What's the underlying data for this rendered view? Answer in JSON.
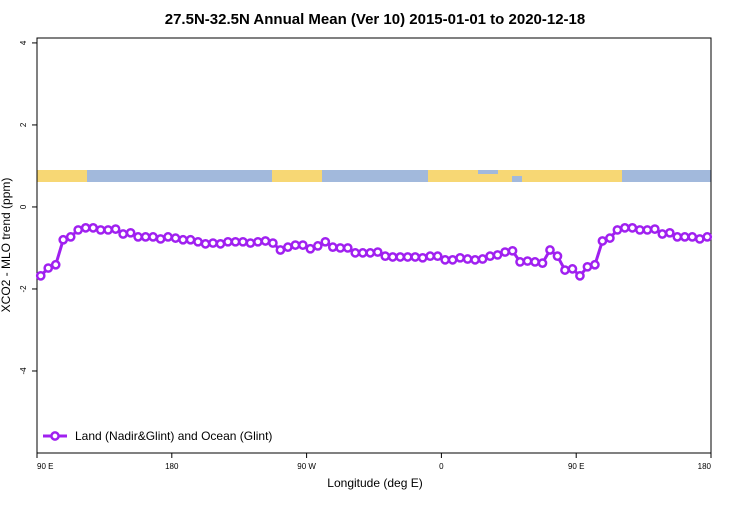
{
  "chart_data": {
    "type": "line",
    "title": "27.5N-32.5N Annual Mean (Ver 10)   2015-01-01 to 2020-12-18",
    "xlabel": "Longitude (deg E)",
    "ylabel": "XCO2 - MLO trend (ppm)",
    "xlim": [
      90,
      540
    ],
    "ylim": [
      -6,
      4.12
    ],
    "xticks": [
      {
        "value": 90,
        "label": "90 E"
      },
      180,
      {
        "value": 270,
        "label": "90 W"
      },
      {
        "value": 360,
        "label": "0"
      },
      {
        "value": 450,
        "label": "90 E"
      },
      {
        "value": 540,
        "label": "180"
      }
    ],
    "yticks": [
      4,
      2,
      0,
      -2,
      -4
    ],
    "legend": "bottom-left",
    "x": [
      92.5,
      97.5,
      102.5,
      107.5,
      112.5,
      117.5,
      122.5,
      127.5,
      132.5,
      137.5,
      142.5,
      147.5,
      152.5,
      157.5,
      162.5,
      167.5,
      172.5,
      177.5,
      182.5,
      187.5,
      192.5,
      197.5,
      202.5,
      207.5,
      212.5,
      217.5,
      222.5,
      227.5,
      232.5,
      237.5,
      242.5,
      247.5,
      252.5,
      257.5,
      262.5,
      267.5,
      272.5,
      277.5,
      282.5,
      287.5,
      292.5,
      297.5,
      302.5,
      307.5,
      312.5,
      317.5,
      322.5,
      327.5,
      332.5,
      337.5,
      342.5,
      347.5,
      352.5,
      357.5,
      362.5,
      367.5,
      372.5,
      377.5,
      382.5,
      387.5,
      392.5,
      397.5,
      402.5,
      407.5,
      412.5,
      417.5,
      422.5,
      427.5,
      432.5,
      437.5,
      442.5,
      447.5,
      452.5,
      457.5,
      462.5,
      467.5,
      472.5,
      477.5,
      482.5,
      487.5,
      492.5,
      497.5,
      502.5,
      507.5,
      512.5,
      517.5,
      522.5,
      527.5,
      532.5,
      537.5
    ],
    "series": [
      {
        "name": "Land (Nadir&Glint) and Ocean (Glint)",
        "color": "#a020f0",
        "values": [
          -1.68,
          -1.49,
          -1.41,
          -0.8,
          -0.73,
          -0.56,
          -0.51,
          -0.51,
          -0.56,
          -0.56,
          -0.54,
          -0.66,
          -0.63,
          -0.73,
          -0.73,
          -0.73,
          -0.78,
          -0.73,
          -0.76,
          -0.8,
          -0.8,
          -0.85,
          -0.9,
          -0.88,
          -0.9,
          -0.85,
          -0.85,
          -0.85,
          -0.88,
          -0.85,
          -0.83,
          -0.88,
          -1.05,
          -0.98,
          -0.93,
          -0.93,
          -1.02,
          -0.95,
          -0.85,
          -0.98,
          -1.0,
          -1.0,
          -1.12,
          -1.12,
          -1.12,
          -1.1,
          -1.2,
          -1.22,
          -1.22,
          -1.22,
          -1.22,
          -1.24,
          -1.2,
          -1.2,
          -1.29,
          -1.29,
          -1.24,
          -1.27,
          -1.29,
          -1.27,
          -1.2,
          -1.17,
          -1.1,
          -1.07,
          -1.34,
          -1.32,
          -1.34,
          -1.37,
          -1.05,
          -1.2,
          -1.54,
          -1.51,
          -1.68,
          -1.46,
          -1.41,
          -0.83,
          -0.76,
          -0.56,
          -0.51,
          -0.51,
          -0.56,
          -0.56,
          -0.54,
          -0.66,
          -0.63,
          -0.73,
          -0.73,
          -0.73,
          -0.78,
          -0.73
        ]
      }
    ]
  }
}
